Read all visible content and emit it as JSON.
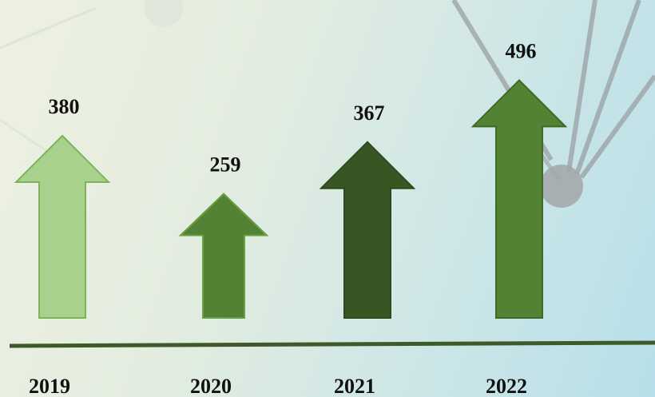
{
  "chart_data": {
    "type": "bar",
    "mark": "arrow",
    "categories": [
      "2019",
      "2020",
      "2021",
      "2022"
    ],
    "values": [
      380,
      259,
      367,
      496
    ],
    "value_labels": [
      "380",
      "259",
      "367",
      "496"
    ],
    "colors": [
      "#a8d18d",
      "#548235",
      "#375623",
      "#548235"
    ],
    "title": "",
    "xlabel": "",
    "ylabel": "",
    "grid": false,
    "legend": "none",
    "baseline_color": "#3d5a28"
  }
}
